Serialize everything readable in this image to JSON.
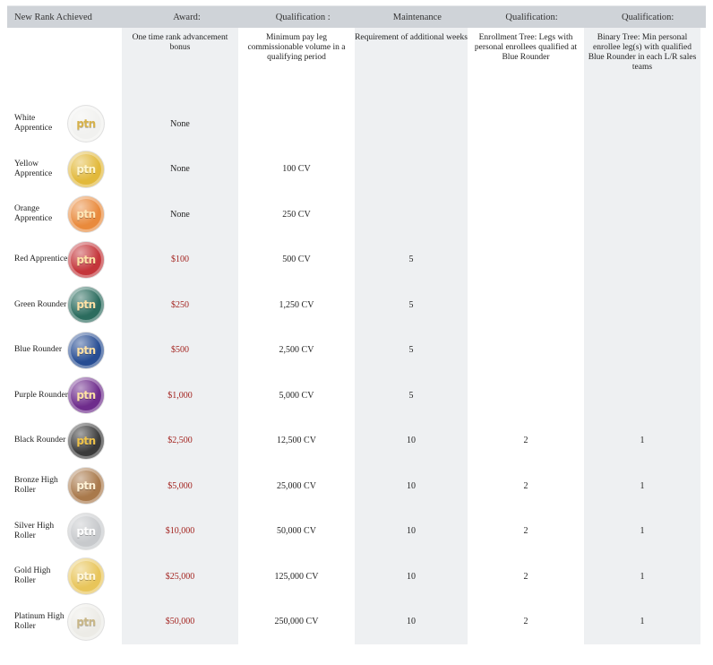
{
  "headers": [
    "New Rank Achieved",
    "Award:",
    "Qualification :",
    "Maintenance",
    "Qualification:",
    "Qualification:"
  ],
  "subheaders": [
    "",
    "One time rank advancement bonus",
    "Minimum  pay leg commissionable volume in a qualifying period",
    "Requirement of additional weeks",
    "Enrollment Tree:  Legs with personal enrollees qualified at Blue Rounder",
    "Binary Tree: Min personal enrollee leg(s) with qualified Blue Rounder in each L/R sales teams"
  ],
  "coin_text": "ptn",
  "ranks": [
    {
      "name": "White Apprentice",
      "coin": "#f1f1ef",
      "coin_text_color": "#d7b24a",
      "award": "None",
      "volume": "",
      "weeks": "",
      "enroll": "",
      "binary": ""
    },
    {
      "name": "Yellow Apprentice",
      "coin": "#e2b93b",
      "coin_text_color": "#fff7cf",
      "award": "None",
      "volume": "100 CV",
      "weeks": "",
      "enroll": "",
      "binary": ""
    },
    {
      "name": "Orange Apprentice",
      "coin": "#e98a3c",
      "coin_text_color": "#ffe7b8",
      "award": "None",
      "volume": "250 CV",
      "weeks": "",
      "enroll": "",
      "binary": ""
    },
    {
      "name": "Red Apprentice",
      "coin": "#c4353a",
      "coin_text_color": "#ffe2a6",
      "award": "$100",
      "volume": "500 CV",
      "weeks": "5",
      "enroll": "",
      "binary": ""
    },
    {
      "name": "Green Rounder",
      "coin": "#2b6c5e",
      "coin_text_color": "#ffe2a6",
      "award": "$250",
      "volume": "1,250 CV",
      "weeks": "5",
      "enroll": "",
      "binary": ""
    },
    {
      "name": "Blue Rounder",
      "coin": "#274d93",
      "coin_text_color": "#ffe2a6",
      "award": "$500",
      "volume": "2,500 CV",
      "weeks": "5",
      "enroll": "",
      "binary": ""
    },
    {
      "name": "Purple Rounder",
      "coin": "#6e2c8c",
      "coin_text_color": "#ffe2a6",
      "award": "$1,000",
      "volume": "5,000 CV",
      "weeks": "5",
      "enroll": "",
      "binary": ""
    },
    {
      "name": "Black Rounder",
      "coin": "#3a3a3a",
      "coin_text_color": "#f0c44a",
      "award": "$2,500",
      "volume": "12,500 CV",
      "weeks": "10",
      "enroll": "2",
      "binary": "1"
    },
    {
      "name": "Bronze High Roller",
      "coin": "#a9794b",
      "coin_text_color": "#fff2d6",
      "award": "$5,000",
      "volume": "25,000 CV",
      "weeks": "10",
      "enroll": "2",
      "binary": "1"
    },
    {
      "name": "Silver High Roller",
      "coin": "#c7c9cc",
      "coin_text_color": "#ffffff",
      "award": "$10,000",
      "volume": "50,000 CV",
      "weeks": "10",
      "enroll": "2",
      "binary": "1"
    },
    {
      "name": "Gold High Roller",
      "coin": "#e8c55a",
      "coin_text_color": "#fff7dc",
      "award": "$25,000",
      "volume": "125,000 CV",
      "weeks": "10",
      "enroll": "2",
      "binary": "1"
    },
    {
      "name": "Platinum High Roller",
      "coin": "#ecebe6",
      "coin_text_color": "#c9b787",
      "award": "$50,000",
      "volume": "250,000 CV",
      "weeks": "10",
      "enroll": "2",
      "binary": "1"
    }
  ]
}
